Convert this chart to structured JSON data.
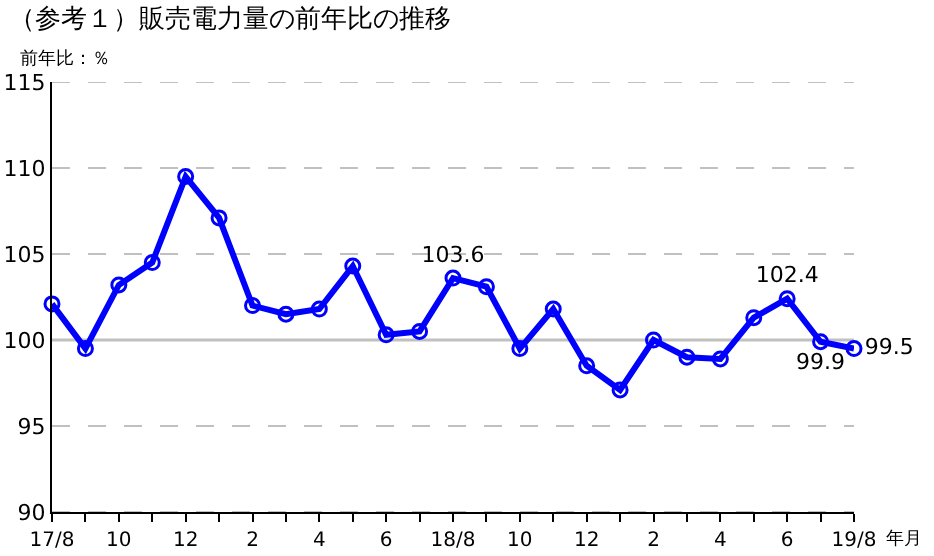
{
  "chart_data": {
    "type": "line",
    "title": "（参考１）販売電力量の前年比の推移",
    "ylabel": "前年比：％",
    "xlabel": "年月",
    "categories": [
      "17/8",
      null,
      "10",
      null,
      "12",
      null,
      "2",
      null,
      "4",
      null,
      "6",
      null,
      "18/8",
      null,
      "10",
      null,
      "12",
      null,
      "2",
      null,
      "4",
      null,
      "6",
      null,
      "19/8"
    ],
    "series": [
      {
        "color": "#0000ff",
        "values": [
          102.1,
          99.5,
          103.2,
          104.5,
          109.5,
          107.1,
          102.0,
          101.5,
          101.8,
          104.3,
          100.3,
          100.5,
          103.6,
          103.1,
          99.5,
          101.8,
          98.5,
          97.1,
          100.0,
          99.0,
          98.9,
          101.3,
          102.4,
          99.9,
          99.5
        ],
        "value_labels": [
          null,
          null,
          null,
          null,
          null,
          null,
          null,
          null,
          null,
          null,
          null,
          null,
          "103.6",
          null,
          null,
          null,
          null,
          null,
          null,
          null,
          null,
          null,
          "102.4",
          "99.9",
          "99.5"
        ]
      }
    ],
    "ylim": [
      90,
      115
    ],
    "yticks": [
      90,
      95,
      100,
      105,
      110,
      115
    ],
    "grid": "y",
    "marker": "circle",
    "line_style": "solid",
    "ref_lines": [
      {
        "axis": "y",
        "value": 100,
        "color": "#c0c0c0",
        "line_style": "solid"
      }
    ]
  }
}
